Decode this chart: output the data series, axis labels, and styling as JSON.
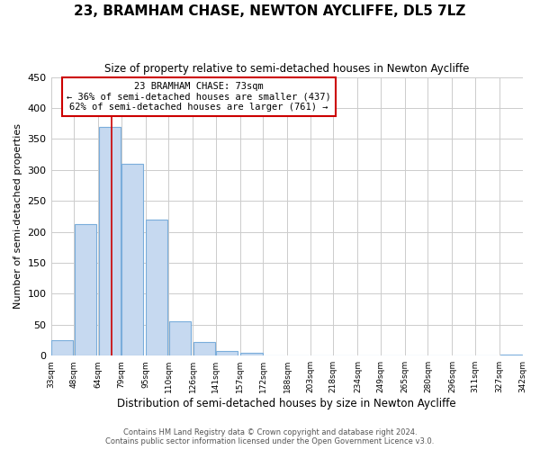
{
  "title": "23, BRAMHAM CHASE, NEWTON AYCLIFFE, DL5 7LZ",
  "subtitle": "Size of property relative to semi-detached houses in Newton Aycliffe",
  "xlabel": "Distribution of semi-detached houses by size in Newton Aycliffe",
  "ylabel": "Number of semi-detached properties",
  "bar_left_edges": [
    33,
    48,
    64,
    79,
    95,
    110,
    126,
    141,
    157,
    172,
    188,
    203,
    218,
    234,
    249,
    265,
    280,
    296,
    311,
    327
  ],
  "bar_heights": [
    25,
    212,
    370,
    310,
    220,
    55,
    22,
    8,
    5,
    0,
    0,
    0,
    0,
    0,
    0,
    0,
    0,
    0,
    0,
    2
  ],
  "bin_width": 15,
  "bar_color": "#c6d9f0",
  "bar_edgecolor": "#7aaddb",
  "ylim": [
    0,
    450
  ],
  "yticks": [
    0,
    50,
    100,
    150,
    200,
    250,
    300,
    350,
    400,
    450
  ],
  "x_tick_labels": [
    "33sqm",
    "48sqm",
    "64sqm",
    "79sqm",
    "95sqm",
    "110sqm",
    "126sqm",
    "141sqm",
    "157sqm",
    "172sqm",
    "188sqm",
    "203sqm",
    "218sqm",
    "234sqm",
    "249sqm",
    "265sqm",
    "280sqm",
    "296sqm",
    "311sqm",
    "327sqm",
    "342sqm"
  ],
  "property_size": 73,
  "annotation_title": "23 BRAMHAM CHASE: 73sqm",
  "annotation_line1": "← 36% of semi-detached houses are smaller (437)",
  "annotation_line2": "62% of semi-detached houses are larger (761) →",
  "vline_x": 73,
  "vline_color": "#cc0000",
  "annotation_box_edgecolor": "#cc0000",
  "footer1": "Contains HM Land Registry data © Crown copyright and database right 2024.",
  "footer2": "Contains public sector information licensed under the Open Government Licence v3.0.",
  "background_color": "#ffffff",
  "grid_color": "#cccccc"
}
